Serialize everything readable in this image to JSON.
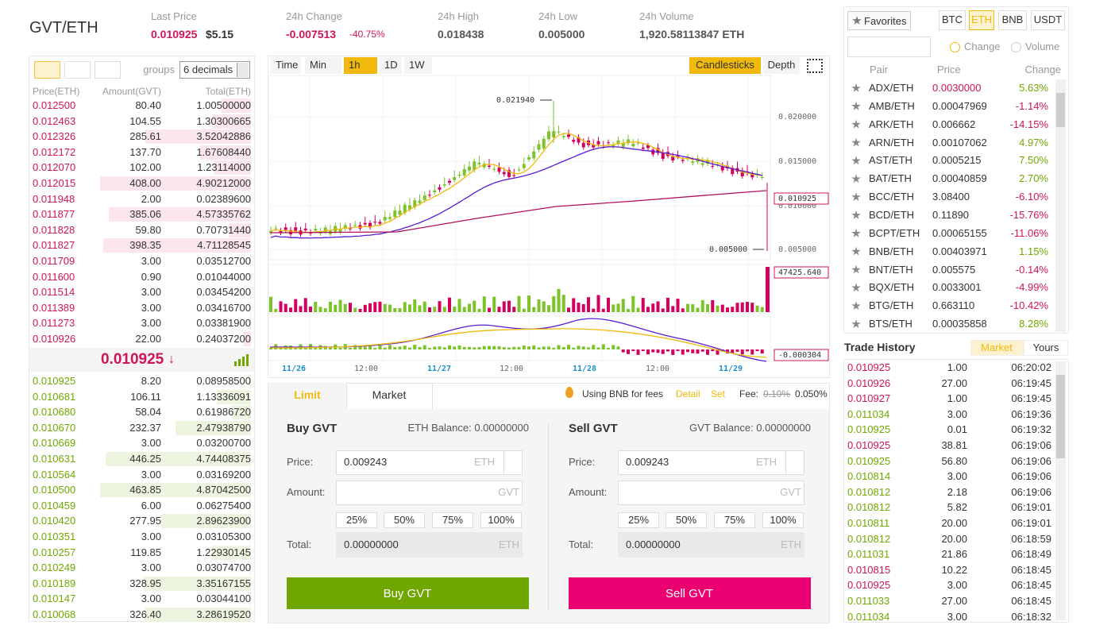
{
  "header": {
    "pair": "GVT/ETH",
    "stats": [
      {
        "label": "Last Price",
        "value": "0.010925",
        "extra": "$5.15",
        "color": "#d0145a"
      },
      {
        "label": "24h Change",
        "value": "-0.007513",
        "extra": "-40.75%",
        "color": "#d0145a"
      },
      {
        "label": "24h High",
        "value": "0.018438",
        "color": "#555"
      },
      {
        "label": "24h Low",
        "value": "0.005000",
        "color": "#555"
      },
      {
        "label": "24h Volume",
        "value": "1,920.58113847 ETH",
        "color": "#555"
      }
    ]
  },
  "orderbook": {
    "groups": "groups",
    "decimals": "6 decimals",
    "columns": [
      "Price(ETH)",
      "Amount(GVT)",
      "Total(ETH)"
    ],
    "ask_color": "#d0145a",
    "bid_color": "#70a800",
    "asks": [
      [
        "0.012500",
        "80.40",
        "1.00500000"
      ],
      [
        "0.012463",
        "104.55",
        "1.30300665"
      ],
      [
        "0.012326",
        "285.61",
        "3.52042886"
      ],
      [
        "0.012172",
        "137.70",
        "1.67608440"
      ],
      [
        "0.012070",
        "102.00",
        "1.23114000"
      ],
      [
        "0.012015",
        "408.00",
        "4.90212000"
      ],
      [
        "0.011948",
        "2.00",
        "0.02389600"
      ],
      [
        "0.011877",
        "385.06",
        "4.57335762"
      ],
      [
        "0.011828",
        "59.80",
        "0.70731440"
      ],
      [
        "0.011827",
        "398.35",
        "4.71128545"
      ],
      [
        "0.011709",
        "3.00",
        "0.03512700"
      ],
      [
        "0.011600",
        "0.90",
        "0.01044000"
      ],
      [
        "0.011514",
        "3.00",
        "0.03454200"
      ],
      [
        "0.011389",
        "3.00",
        "0.03416700"
      ],
      [
        "0.011273",
        "3.00",
        "0.03381900"
      ],
      [
        "0.010926",
        "22.00",
        "0.24037200"
      ]
    ],
    "last_price": "0.010925",
    "last_arrow": "↓",
    "bids": [
      [
        "0.010925",
        "8.20",
        "0.08958500"
      ],
      [
        "0.010681",
        "106.11",
        "1.13336091"
      ],
      [
        "0.010680",
        "58.04",
        "0.61986720"
      ],
      [
        "0.010670",
        "232.37",
        "2.47938790"
      ],
      [
        "0.010669",
        "3.00",
        "0.03200700"
      ],
      [
        "0.010631",
        "446.25",
        "4.74408375"
      ],
      [
        "0.010564",
        "3.00",
        "0.03169200"
      ],
      [
        "0.010500",
        "463.85",
        "4.87042500"
      ],
      [
        "0.010459",
        "6.00",
        "0.06275400"
      ],
      [
        "0.010420",
        "277.95",
        "2.89623900"
      ],
      [
        "0.010351",
        "3.00",
        "0.03105300"
      ],
      [
        "0.010257",
        "119.85",
        "1.22930145"
      ],
      [
        "0.010249",
        "3.00",
        "0.03074700"
      ],
      [
        "0.010189",
        "328.95",
        "3.35167155"
      ],
      [
        "0.010147",
        "3.00",
        "0.03044100"
      ],
      [
        "0.010068",
        "326.40",
        "3.28619520"
      ]
    ]
  },
  "chart": {
    "toolbar": [
      "Time",
      "Min",
      "1h",
      "1D",
      "1W"
    ],
    "views": [
      "Candlesticks",
      "Depth"
    ],
    "high_label": "0.021940",
    "low_label": "0.005000",
    "y_labels": [
      "0.020000",
      "0.015000",
      "0.010000",
      "0.005000"
    ],
    "current_price": "0.010925",
    "volume_label": "47425.640",
    "macd_label": "-0.000304",
    "x_labels": [
      "11/26",
      "12:00",
      "11/27",
      "12:00",
      "11/28",
      "12:00",
      "11/29"
    ]
  },
  "trade": {
    "tabs": [
      "Limit",
      "Market"
    ],
    "bnb_text": "Using BNB for fees",
    "detail": "Detail",
    "set": "Set",
    "fee_label": "Fee:",
    "fee_old": "0.10%",
    "fee_new": "0.050%",
    "forms": [
      {
        "title": "Buy GVT",
        "balance": "ETH Balance: 0.00000000",
        "price_label": "Price:",
        "price": "0.009243",
        "price_unit": "ETH",
        "amount_label": "Amount:",
        "amount_unit": "GVT",
        "percents": [
          "25%",
          "50%",
          "75%",
          "100%"
        ],
        "total_label": "Total:",
        "total": "0.00000000",
        "total_unit": "ETH",
        "button": "Buy GVT",
        "button_color": "#6fa600"
      },
      {
        "title": "Sell GVT",
        "balance": "GVT Balance: 0.00000000",
        "price_label": "Price:",
        "price": "0.009243",
        "price_unit": "ETH",
        "amount_label": "Amount:",
        "amount_unit": "GVT",
        "percents": [
          "25%",
          "50%",
          "75%",
          "100%"
        ],
        "total_label": "Total:",
        "total": "0.00000000",
        "total_unit": "ETH",
        "button": "Sell GVT",
        "button_color": "#ea0070"
      }
    ]
  },
  "market": {
    "favorites": "Favorites",
    "quotes": [
      "BTC",
      "ETH",
      "BNB",
      "USDT"
    ],
    "modes": [
      "Change",
      "Volume"
    ],
    "columns": [
      "Pair",
      "Price",
      "Change"
    ],
    "rows": [
      {
        "pair": "ADX/ETH",
        "price": "0.0030000",
        "change": "5.63%",
        "color": "#d0145a"
      },
      {
        "pair": "AMB/ETH",
        "price": "0.00047969",
        "change": "-1.14%"
      },
      {
        "pair": "ARK/ETH",
        "price": "0.006662",
        "change": "-14.15%"
      },
      {
        "pair": "ARN/ETH",
        "price": "0.00107062",
        "change": "4.97%"
      },
      {
        "pair": "AST/ETH",
        "price": "0.0005215",
        "change": "7.50%"
      },
      {
        "pair": "BAT/ETH",
        "price": "0.00040859",
        "change": "2.70%"
      },
      {
        "pair": "BCC/ETH",
        "price": "3.08400",
        "change": "-6.10%"
      },
      {
        "pair": "BCD/ETH",
        "price": "0.11890",
        "change": "-15.76%"
      },
      {
        "pair": "BCPT/ETH",
        "price": "0.00065155",
        "change": "-11.06%"
      },
      {
        "pair": "BNB/ETH",
        "price": "0.00403971",
        "change": "1.15%"
      },
      {
        "pair": "BNT/ETH",
        "price": "0.005575",
        "change": "-0.14%"
      },
      {
        "pair": "BQX/ETH",
        "price": "0.0033001",
        "change": "-4.99%"
      },
      {
        "pair": "BTG/ETH",
        "price": "0.663110",
        "change": "-10.42%"
      },
      {
        "pair": "BTS/ETH",
        "price": "0.00035858",
        "change": "8.28%"
      }
    ]
  },
  "history": {
    "title": "Trade History",
    "tabs": [
      "Market",
      "Yours"
    ],
    "rows": [
      {
        "price": "0.010925",
        "amount": "1.00",
        "time": "06:20:02",
        "color": "#d0145a"
      },
      {
        "price": "0.010926",
        "amount": "27.00",
        "time": "06:19:45",
        "color": "#d0145a"
      },
      {
        "price": "0.010927",
        "amount": "1.00",
        "time": "06:19:45",
        "color": "#d0145a"
      },
      {
        "price": "0.011034",
        "amount": "3.00",
        "time": "06:19:36",
        "color": "#70a800"
      },
      {
        "price": "0.010925",
        "amount": "0.01",
        "time": "06:19:32",
        "color": "#70a800"
      },
      {
        "price": "0.010925",
        "amount": "38.81",
        "time": "06:19:06",
        "color": "#d0145a"
      },
      {
        "price": "0.010925",
        "amount": "56.80",
        "time": "06:19:06",
        "color": "#70a800"
      },
      {
        "price": "0.010814",
        "amount": "3.00",
        "time": "06:19:06",
        "color": "#70a800"
      },
      {
        "price": "0.010812",
        "amount": "2.18",
        "time": "06:19:06",
        "color": "#70a800"
      },
      {
        "price": "0.010812",
        "amount": "5.82",
        "time": "06:19:01",
        "color": "#70a800"
      },
      {
        "price": "0.010811",
        "amount": "20.00",
        "time": "06:19:01",
        "color": "#70a800"
      },
      {
        "price": "0.010812",
        "amount": "20.00",
        "time": "06:18:59",
        "color": "#70a800"
      },
      {
        "price": "0.011031",
        "amount": "21.86",
        "time": "06:18:49",
        "color": "#70a800"
      },
      {
        "price": "0.010815",
        "amount": "10.22",
        "time": "06:18:45",
        "color": "#d0145a"
      },
      {
        "price": "0.010925",
        "amount": "3.00",
        "time": "06:18:45",
        "color": "#d0145a"
      },
      {
        "price": "0.011033",
        "amount": "27.00",
        "time": "06:18:45",
        "color": "#70a800"
      },
      {
        "price": "0.011034",
        "amount": "3.00",
        "time": "06:18:32",
        "color": "#70a800"
      }
    ]
  }
}
